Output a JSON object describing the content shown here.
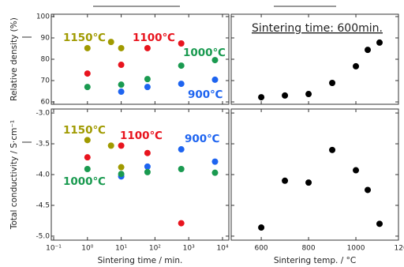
{
  "chart_data": [
    {
      "type": "scatter",
      "ylabel": "Relative density (%)",
      "xscale": "log",
      "xlim": [
        0.085,
        15400
      ],
      "ylim": [
        58.9,
        101.1
      ],
      "yticks": [
        60,
        70,
        80,
        90,
        100
      ],
      "series": [
        {
          "name": "1150℃",
          "color": "#a09a00",
          "x": [
            1,
            5,
            10
          ],
          "values": [
            85.2,
            88.1,
            85.2
          ]
        },
        {
          "name": "1100℃",
          "color": "#e8141e",
          "x": [
            1,
            10,
            60,
            600
          ],
          "values": [
            73.3,
            77.4,
            85.2,
            87.4
          ]
        },
        {
          "name": "1000℃",
          "color": "#1a9a50",
          "x": [
            1,
            10,
            60,
            600,
            6000
          ],
          "values": [
            67,
            68.1,
            70.7,
            77,
            79.6
          ]
        },
        {
          "name": "900℃",
          "color": "#1e64f0",
          "x": [
            10,
            60,
            600,
            6000
          ],
          "values": [
            64.8,
            67,
            68.5,
            70.4
          ]
        }
      ]
    },
    {
      "type": "scatter",
      "ylabel": "Total conductivity / S·cm⁻¹",
      "xlabel": "Sintering time / min.",
      "xscale": "log",
      "xlim": [
        0.085,
        15400
      ],
      "xticks": [
        {
          "value": 0.1,
          "label": "10⁻¹"
        },
        {
          "value": 1,
          "label": "10⁰"
        },
        {
          "value": 10,
          "label": "10¹"
        },
        {
          "value": 100,
          "label": "10²"
        },
        {
          "value": 1000,
          "label": "10³"
        },
        {
          "value": 10000,
          "label": "10⁴"
        }
      ],
      "ylim": [
        -5.065,
        -2.935
      ],
      "yticks": [
        {
          "value": -3,
          "label": "-3.0"
        },
        -3.5,
        {
          "value": -4,
          "label": "-4.0"
        },
        -4.5,
        {
          "value": -5,
          "label": "-5.0"
        }
      ],
      "series": [
        {
          "name": "1150℃",
          "color": "#a09a00",
          "x": [
            1,
            5,
            10
          ],
          "values": [
            -3.44,
            -3.53,
            -3.88
          ]
        },
        {
          "name": "1100℃",
          "color": "#e8141e",
          "x": [
            1,
            10,
            60,
            600
          ],
          "values": [
            -3.72,
            -3.53,
            -3.65,
            -4.79
          ]
        },
        {
          "name": "900℃",
          "color": "#1e64f0",
          "x": [
            10,
            60,
            600,
            6000
          ],
          "values": [
            -4.03,
            -3.87,
            -3.59,
            -3.79
          ]
        },
        {
          "name": "1000℃",
          "color": "#1a9a50",
          "x": [
            1,
            10,
            60,
            600,
            6000
          ],
          "values": [
            -3.91,
            -3.99,
            -3.96,
            -3.91,
            -3.97
          ]
        }
      ]
    },
    {
      "type": "scatter",
      "annotation": "Sintering time: 600min.",
      "xlim": [
        473,
        1180
      ],
      "ylim": [
        58.9,
        101.1
      ],
      "color": "#000000",
      "x": [
        600,
        700,
        800,
        900,
        1000,
        1050,
        1100
      ],
      "values": [
        62.2,
        63,
        63.7,
        68.9,
        76.7,
        84.4,
        87.8
      ]
    },
    {
      "type": "scatter",
      "xlabel": "Sintering temp. / °C",
      "xlim": [
        473,
        1180
      ],
      "xticks": [
        600,
        800,
        1000,
        1200
      ],
      "ylim": [
        -5.065,
        -2.935
      ],
      "color": "#000000",
      "x": [
        600,
        700,
        800,
        900,
        1000,
        1050,
        1100
      ],
      "values": [
        -4.86,
        -4.1,
        -4.13,
        -3.6,
        -3.93,
        -4.25,
        -4.8
      ]
    }
  ]
}
